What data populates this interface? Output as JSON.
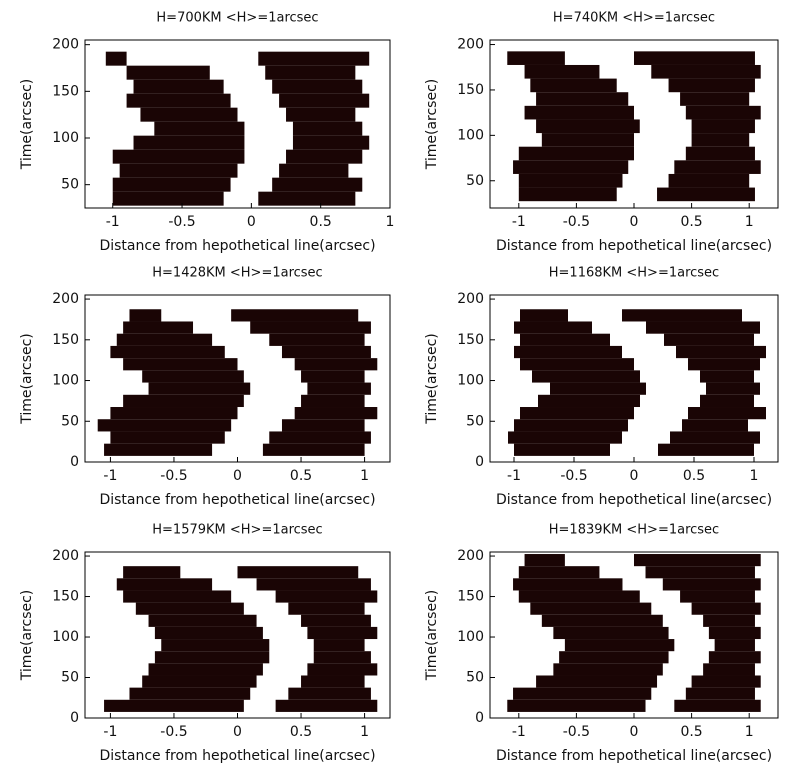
{
  "chart_data": [
    {
      "type": "heatmap",
      "title": "H=700KM <H>=1arcsec",
      "x_label": "Distance from hepothetical line(arcsec)",
      "y_label": "Time(arcsec)",
      "xlim": [
        -1.2,
        1
      ],
      "ylim": [
        25,
        205
      ],
      "xticks": [
        -1,
        -0.5,
        0,
        0.5,
        1
      ],
      "yticks": [
        50,
        100,
        150,
        200
      ],
      "color": "#1a0505",
      "rows": [
        {
          "y": 35,
          "black": [
            [
              -1.0,
              -0.2
            ],
            [
              0.05,
              0.75
            ]
          ]
        },
        {
          "y": 50,
          "black": [
            [
              -1.0,
              -0.15
            ],
            [
              0.15,
              0.8
            ]
          ]
        },
        {
          "y": 65,
          "black": [
            [
              -0.95,
              -0.1
            ],
            [
              0.2,
              0.7
            ]
          ]
        },
        {
          "y": 80,
          "black": [
            [
              -1.0,
              -0.05
            ],
            [
              0.25,
              0.8
            ]
          ]
        },
        {
          "y": 95,
          "black": [
            [
              -0.85,
              -0.05
            ],
            [
              0.3,
              0.85
            ]
          ]
        },
        {
          "y": 110,
          "black": [
            [
              -0.7,
              -0.05
            ],
            [
              0.3,
              0.8
            ]
          ]
        },
        {
          "y": 125,
          "black": [
            [
              -0.8,
              -0.1
            ],
            [
              0.25,
              0.75
            ]
          ]
        },
        {
          "y": 140,
          "black": [
            [
              -0.9,
              -0.15
            ],
            [
              0.2,
              0.85
            ]
          ]
        },
        {
          "y": 155,
          "black": [
            [
              -0.85,
              -0.2
            ],
            [
              0.15,
              0.8
            ]
          ]
        },
        {
          "y": 170,
          "black": [
            [
              -0.9,
              -0.3
            ],
            [
              0.1,
              0.75
            ]
          ]
        },
        {
          "y": 185,
          "black": [
            [
              -1.05,
              -0.9
            ],
            [
              0.05,
              0.85
            ]
          ]
        }
      ]
    },
    {
      "type": "heatmap",
      "title": "H=740KM <H>=1arcsec",
      "x_label": "Distance from hepothetical line(arcsec)",
      "y_label": "Time(arcsec)",
      "xlim": [
        -1.25,
        1.25
      ],
      "ylim": [
        20,
        205
      ],
      "xticks": [
        -1,
        -0.5,
        0,
        0.5,
        1
      ],
      "yticks": [
        50,
        100,
        150,
        200
      ],
      "color": "#1a0505",
      "rows": [
        {
          "y": 35,
          "black": [
            [
              -1.0,
              -0.15
            ],
            [
              0.2,
              1.05
            ]
          ]
        },
        {
          "y": 50,
          "black": [
            [
              -1.0,
              -0.1
            ],
            [
              0.3,
              1.0
            ]
          ]
        },
        {
          "y": 65,
          "black": [
            [
              -1.05,
              -0.05
            ],
            [
              0.35,
              1.1
            ]
          ]
        },
        {
          "y": 80,
          "black": [
            [
              -1.0,
              0.0
            ],
            [
              0.45,
              1.05
            ]
          ]
        },
        {
          "y": 95,
          "black": [
            [
              -0.8,
              0.0
            ],
            [
              0.5,
              1.0
            ]
          ]
        },
        {
          "y": 110,
          "black": [
            [
              -0.85,
              0.05
            ],
            [
              0.5,
              1.05
            ]
          ]
        },
        {
          "y": 125,
          "black": [
            [
              -0.95,
              0.0
            ],
            [
              0.45,
              1.1
            ]
          ]
        },
        {
          "y": 140,
          "black": [
            [
              -0.85,
              -0.05
            ],
            [
              0.4,
              1.0
            ]
          ]
        },
        {
          "y": 155,
          "black": [
            [
              -0.9,
              -0.15
            ],
            [
              0.3,
              1.05
            ]
          ]
        },
        {
          "y": 170,
          "black": [
            [
              -0.95,
              -0.3
            ],
            [
              0.15,
              1.1
            ]
          ]
        },
        {
          "y": 185,
          "black": [
            [
              -1.1,
              -0.6
            ],
            [
              0.0,
              1.05
            ]
          ]
        }
      ]
    },
    {
      "type": "heatmap",
      "title": "H=1428KM <H>=1arcsec",
      "x_label": "Distance from hepothetical line(arcsec)",
      "y_label": "Time(arcsec)",
      "xlim": [
        -1.2,
        1.2
      ],
      "ylim": [
        0,
        205
      ],
      "xticks": [
        -1,
        -0.5,
        0,
        0.5,
        1
      ],
      "yticks": [
        0,
        50,
        100,
        150,
        200
      ],
      "color": "#1a0505",
      "rows": [
        {
          "y": 15,
          "black": [
            [
              -1.05,
              -0.2
            ],
            [
              0.2,
              1.0
            ]
          ]
        },
        {
          "y": 30,
          "black": [
            [
              -1.0,
              -0.1
            ],
            [
              0.25,
              1.05
            ]
          ]
        },
        {
          "y": 45,
          "black": [
            [
              -1.1,
              -0.05
            ],
            [
              0.35,
              1.0
            ]
          ]
        },
        {
          "y": 60,
          "black": [
            [
              -1.0,
              0.0
            ],
            [
              0.45,
              1.1
            ]
          ]
        },
        {
          "y": 75,
          "black": [
            [
              -0.9,
              0.05
            ],
            [
              0.5,
              1.0
            ]
          ]
        },
        {
          "y": 90,
          "black": [
            [
              -0.7,
              0.1
            ],
            [
              0.55,
              1.05
            ]
          ]
        },
        {
          "y": 105,
          "black": [
            [
              -0.75,
              0.05
            ],
            [
              0.5,
              1.0
            ]
          ]
        },
        {
          "y": 120,
          "black": [
            [
              -0.9,
              0.0
            ],
            [
              0.45,
              1.1
            ]
          ]
        },
        {
          "y": 135,
          "black": [
            [
              -1.0,
              -0.1
            ],
            [
              0.35,
              1.05
            ]
          ]
        },
        {
          "y": 150,
          "black": [
            [
              -0.95,
              -0.2
            ],
            [
              0.25,
              1.0
            ]
          ]
        },
        {
          "y": 165,
          "black": [
            [
              -0.9,
              -0.35
            ],
            [
              0.1,
              1.05
            ]
          ]
        },
        {
          "y": 180,
          "black": [
            [
              -0.85,
              -0.6
            ],
            [
              -0.05,
              0.95
            ]
          ]
        }
      ]
    },
    {
      "type": "heatmap",
      "title": "H=1168KM <H>=1arcsec",
      "x_label": "Distance from hepothetical line(arcsec)",
      "y_label": "Time(arcsec)",
      "xlim": [
        -1.2,
        1.2
      ],
      "ylim": [
        0,
        205
      ],
      "xticks": [
        -1,
        -0.5,
        0,
        0.5,
        1
      ],
      "yticks": [
        0,
        50,
        100,
        150,
        200
      ],
      "color": "#1a0505",
      "rows": [
        {
          "y": 15,
          "black": [
            [
              -1.0,
              -0.2
            ],
            [
              0.2,
              1.0
            ]
          ]
        },
        {
          "y": 30,
          "black": [
            [
              -1.05,
              -0.1
            ],
            [
              0.3,
              1.05
            ]
          ]
        },
        {
          "y": 45,
          "black": [
            [
              -1.0,
              -0.05
            ],
            [
              0.4,
              0.95
            ]
          ]
        },
        {
          "y": 60,
          "black": [
            [
              -0.95,
              0.0
            ],
            [
              0.45,
              1.1
            ]
          ]
        },
        {
          "y": 75,
          "black": [
            [
              -0.8,
              0.05
            ],
            [
              0.55,
              1.0
            ]
          ]
        },
        {
          "y": 90,
          "black": [
            [
              -0.7,
              0.1
            ],
            [
              0.6,
              1.05
            ]
          ]
        },
        {
          "y": 105,
          "black": [
            [
              -0.85,
              0.05
            ],
            [
              0.55,
              1.0
            ]
          ]
        },
        {
          "y": 120,
          "black": [
            [
              -0.95,
              0.0
            ],
            [
              0.45,
              1.05
            ]
          ]
        },
        {
          "y": 135,
          "black": [
            [
              -1.0,
              -0.1
            ],
            [
              0.35,
              1.1
            ]
          ]
        },
        {
          "y": 150,
          "black": [
            [
              -0.95,
              -0.2
            ],
            [
              0.25,
              1.0
            ]
          ]
        },
        {
          "y": 165,
          "black": [
            [
              -1.0,
              -0.35
            ],
            [
              0.1,
              1.05
            ]
          ]
        },
        {
          "y": 180,
          "black": [
            [
              -0.95,
              -0.55
            ],
            [
              -0.1,
              0.9
            ]
          ]
        }
      ]
    },
    {
      "type": "heatmap",
      "title": "H=1579KM <H>=1arcsec",
      "x_label": "Distance from hepothetical line(arcsec)",
      "y_label": "Time(arcsec)",
      "xlim": [
        -1.2,
        1.2
      ],
      "ylim": [
        0,
        205
      ],
      "xticks": [
        -1,
        -0.5,
        0,
        0.5,
        1
      ],
      "yticks": [
        0,
        50,
        100,
        150,
        200
      ],
      "color": "#1a0505",
      "rows": [
        {
          "y": 15,
          "black": [
            [
              -1.05,
              0.05
            ],
            [
              0.3,
              1.1
            ]
          ]
        },
        {
          "y": 30,
          "black": [
            [
              -0.85,
              0.1
            ],
            [
              0.4,
              1.05
            ]
          ]
        },
        {
          "y": 45,
          "black": [
            [
              -0.75,
              0.15
            ],
            [
              0.5,
              1.0
            ]
          ]
        },
        {
          "y": 60,
          "black": [
            [
              -0.7,
              0.2
            ],
            [
              0.55,
              1.1
            ]
          ]
        },
        {
          "y": 75,
          "black": [
            [
              -0.65,
              0.25
            ],
            [
              0.6,
              1.05
            ]
          ]
        },
        {
          "y": 90,
          "black": [
            [
              -0.6,
              0.25
            ],
            [
              0.6,
              1.0
            ]
          ]
        },
        {
          "y": 105,
          "black": [
            [
              -0.65,
              0.2
            ],
            [
              0.55,
              1.1
            ]
          ]
        },
        {
          "y": 120,
          "black": [
            [
              -0.7,
              0.15
            ],
            [
              0.5,
              1.05
            ]
          ]
        },
        {
          "y": 135,
          "black": [
            [
              -0.8,
              0.05
            ],
            [
              0.4,
              1.0
            ]
          ]
        },
        {
          "y": 150,
          "black": [
            [
              -0.9,
              -0.05
            ],
            [
              0.3,
              1.1
            ]
          ]
        },
        {
          "y": 165,
          "black": [
            [
              -0.95,
              -0.2
            ],
            [
              0.15,
              1.05
            ]
          ]
        },
        {
          "y": 180,
          "black": [
            [
              -0.9,
              -0.45
            ],
            [
              0.0,
              0.95
            ]
          ]
        }
      ]
    },
    {
      "type": "heatmap",
      "title": "H=1839KM <H>=1arcsec",
      "x_label": "Distance from hepothetical line(arcsec)",
      "y_label": "Time(arcsec)",
      "xlim": [
        -1.25,
        1.25
      ],
      "ylim": [
        0,
        205
      ],
      "xticks": [
        -1,
        -0.5,
        0,
        0.5,
        1
      ],
      "yticks": [
        0,
        50,
        100,
        150,
        200
      ],
      "color": "#1a0505",
      "rows": [
        {
          "y": 15,
          "black": [
            [
              -1.1,
              0.1
            ],
            [
              0.35,
              1.1
            ]
          ]
        },
        {
          "y": 30,
          "black": [
            [
              -1.05,
              0.15
            ],
            [
              0.45,
              1.05
            ]
          ]
        },
        {
          "y": 45,
          "black": [
            [
              -0.85,
              0.2
            ],
            [
              0.5,
              1.1
            ]
          ]
        },
        {
          "y": 60,
          "black": [
            [
              -0.7,
              0.25
            ],
            [
              0.6,
              1.05
            ]
          ]
        },
        {
          "y": 75,
          "black": [
            [
              -0.65,
              0.3
            ],
            [
              0.65,
              1.1
            ]
          ]
        },
        {
          "y": 90,
          "black": [
            [
              -0.6,
              0.35
            ],
            [
              0.7,
              1.05
            ]
          ]
        },
        {
          "y": 105,
          "black": [
            [
              -0.7,
              0.3
            ],
            [
              0.65,
              1.1
            ]
          ]
        },
        {
          "y": 120,
          "black": [
            [
              -0.8,
              0.25
            ],
            [
              0.6,
              1.05
            ]
          ]
        },
        {
          "y": 135,
          "black": [
            [
              -0.9,
              0.15
            ],
            [
              0.5,
              1.1
            ]
          ]
        },
        {
          "y": 150,
          "black": [
            [
              -1.0,
              0.05
            ],
            [
              0.4,
              1.05
            ]
          ]
        },
        {
          "y": 165,
          "black": [
            [
              -1.05,
              -0.1
            ],
            [
              0.25,
              1.1
            ]
          ]
        },
        {
          "y": 180,
          "black": [
            [
              -1.0,
              -0.3
            ],
            [
              0.1,
              1.05
            ]
          ]
        },
        {
          "y": 195,
          "black": [
            [
              -0.95,
              -0.6
            ],
            [
              0.0,
              1.1
            ]
          ]
        }
      ]
    }
  ]
}
